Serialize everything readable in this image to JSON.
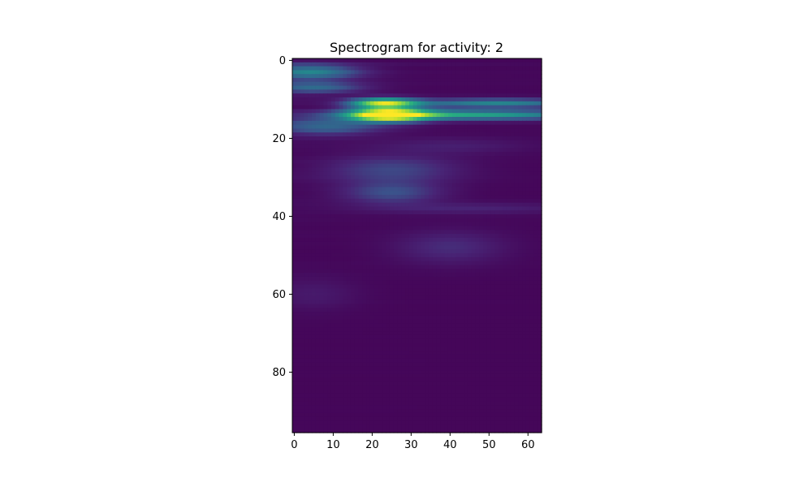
{
  "chart_data": {
    "type": "heatmap",
    "title": "Spectrogram for activity: 2",
    "xlabel": "",
    "ylabel": "",
    "colormap": "viridis",
    "x_ticks": [
      "0",
      "10",
      "20",
      "30",
      "40",
      "50",
      "60"
    ],
    "y_ticks": [
      "0",
      "20",
      "40",
      "60",
      "80"
    ],
    "xlim": [
      -0.5,
      63.5
    ],
    "ylim": [
      95.5,
      -0.5
    ],
    "n_cols": 64,
    "n_rows": 96,
    "grid": false,
    "value_range": [
      0,
      1
    ],
    "background_level": 0.02,
    "features": [
      {
        "y": 14,
        "x": 24,
        "sy": 1.2,
        "sx": 7,
        "amp": 0.98
      },
      {
        "y": 11,
        "x": 23,
        "sy": 0.9,
        "sx": 6,
        "amp": 0.82
      },
      {
        "y": 14,
        "x": 45,
        "sy": 0.9,
        "sx": 22,
        "amp": 0.55
      },
      {
        "y": 11,
        "x": 52,
        "sy": 0.8,
        "sx": 16,
        "amp": 0.42
      },
      {
        "y": 3,
        "x": 4,
        "sy": 1.4,
        "sx": 9,
        "amp": 0.42
      },
      {
        "y": 7,
        "x": 5,
        "sy": 1.0,
        "sx": 9,
        "amp": 0.32
      },
      {
        "y": 17,
        "x": 8,
        "sy": 1.5,
        "sx": 10,
        "amp": 0.3
      },
      {
        "y": 28,
        "x": 25,
        "sy": 2.5,
        "sx": 12,
        "amp": 0.2
      },
      {
        "y": 34,
        "x": 25,
        "sy": 2.0,
        "sx": 9,
        "amp": 0.22
      },
      {
        "y": 48,
        "x": 40,
        "sy": 3.0,
        "sx": 10,
        "amp": 0.13
      },
      {
        "y": 38,
        "x": 45,
        "sy": 1.0,
        "sx": 20,
        "amp": 0.1
      },
      {
        "y": 60,
        "x": 5,
        "sy": 3.0,
        "sx": 8,
        "amp": 0.07
      },
      {
        "y": 22,
        "x": 40,
        "sy": 1.5,
        "sx": 14,
        "amp": 0.08
      }
    ]
  }
}
